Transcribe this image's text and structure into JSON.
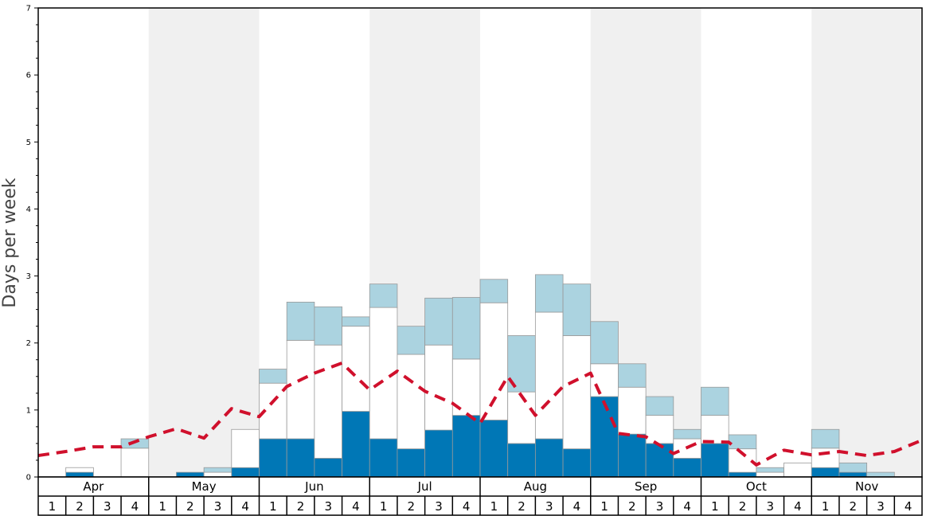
{
  "chart_data": {
    "type": "bar",
    "ylabel": "Days per week",
    "ylim": [
      0,
      7
    ],
    "yticks": [
      "0",
      "1",
      "2",
      "3",
      "4",
      "5",
      "6",
      "7"
    ],
    "months": [
      "Apr",
      "May",
      "Jun",
      "Jul",
      "Aug",
      "Sep",
      "Oct",
      "Nov"
    ],
    "week_labels": [
      "1",
      "2",
      "3",
      "4",
      "1",
      "2",
      "3",
      "4",
      "1",
      "2",
      "3",
      "4",
      "1",
      "2",
      "3",
      "4",
      "1",
      "2",
      "3",
      "4",
      "1",
      "2",
      "3",
      "4",
      "1",
      "2",
      "3",
      "4",
      "1",
      "2",
      "3",
      "4"
    ],
    "colors": {
      "dark": "#0077b6",
      "white": "#ffffff",
      "light": "#abd3e0",
      "line": "#d0102c",
      "band": "#f0f0f0",
      "bar_stroke": "#999999"
    },
    "series": [
      {
        "values": [
          0,
          0.07,
          0,
          0,
          0,
          0.07,
          0,
          0.14,
          0.57,
          0.57,
          0.28,
          0.98,
          0.57,
          0.42,
          0.7,
          0.92,
          0.85,
          0.5,
          0.57,
          0.42,
          1.2,
          0.64,
          0.5,
          0.28,
          0.5,
          0.07,
          0,
          0,
          0.14,
          0.07,
          0,
          0
        ]
      },
      {
        "values": [
          0,
          0.07,
          0,
          0.43,
          0,
          0,
          0.07,
          0.57,
          0.83,
          1.47,
          1.69,
          1.27,
          1.96,
          1.41,
          1.27,
          0.84,
          1.75,
          0.77,
          1.89,
          1.69,
          0.49,
          0.7,
          0.42,
          0.29,
          0.42,
          0.35,
          0.07,
          0.21,
          0.29,
          0,
          0,
          0
        ]
      },
      {
        "values": [
          0,
          0,
          0,
          0.14,
          0,
          0,
          0.07,
          0,
          0.21,
          0.57,
          0.57,
          0.14,
          0.35,
          0.42,
          0.7,
          0.92,
          0.35,
          0.84,
          0.56,
          0.77,
          0.63,
          0.35,
          0.28,
          0.14,
          0.42,
          0.21,
          0.07,
          0,
          0.28,
          0.14,
          0.07,
          0
        ]
      },
      {
        "values": [
          0.32,
          0.38,
          0.45,
          0.45,
          0.6,
          0.72,
          0.58,
          1.02,
          0.9,
          1.35,
          1.55,
          1.7,
          1.3,
          1.58,
          1.28,
          1.1,
          0.8,
          1.5,
          0.92,
          1.35,
          1.55,
          0.65,
          0.6,
          0.35,
          0.53,
          0.52,
          0.18,
          0.4,
          0.33,
          0.38,
          0.32,
          0.38,
          0.55
        ]
      }
    ]
  }
}
